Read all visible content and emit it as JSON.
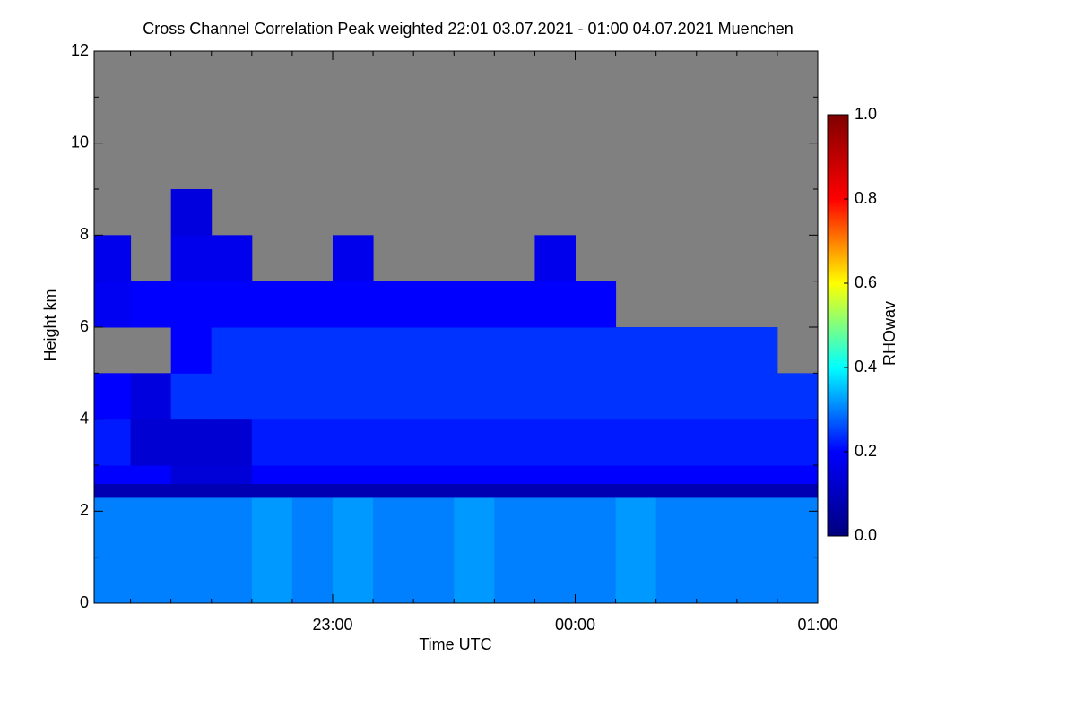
{
  "chart_data": {
    "type": "heatmap",
    "title": "Cross Channel Correlation Peak weighted   22:01 03.07.2021 - 01:00 04.07.2021 Muenchen",
    "xlabel": "Time UTC",
    "ylabel": "Height km",
    "colorbar_label": "RHOwav",
    "xlim": [
      1,
      180
    ],
    "xticks": [
      {
        "value": 60,
        "label": "23:00"
      },
      {
        "value": 120,
        "label": "00:00"
      },
      {
        "value": 180,
        "label": "01:00"
      }
    ],
    "xminorticks": [
      10,
      20,
      30,
      40,
      50,
      70,
      80,
      90,
      100,
      110,
      130,
      140,
      150,
      160,
      170
    ],
    "ylim": [
      0,
      12
    ],
    "yticks": [
      0,
      2,
      4,
      6,
      8,
      10,
      12
    ],
    "yminorticks": [
      1,
      3,
      5,
      7,
      9,
      11
    ],
    "clim": [
      0,
      1
    ],
    "cticks": [
      {
        "value": 0,
        "label": "0.0"
      },
      0.2,
      0.4,
      0.6,
      0.8,
      {
        "value": 1,
        "label": "1.0"
      }
    ],
    "colormap": [
      "#00007f",
      "#0000ff",
      "#00ffff",
      "#ffff00",
      "#ff0000",
      "#7f0000"
    ],
    "missing_color": "#808080",
    "xbins": [
      0,
      10,
      20,
      30,
      40,
      50,
      60,
      70,
      80,
      90,
      100,
      110,
      120,
      130,
      140,
      150,
      160,
      170,
      180
    ],
    "ybins": [
      0,
      2.3,
      2.6,
      3,
      4,
      5,
      6,
      7,
      8,
      9,
      10,
      11,
      12
    ],
    "z": [
      [
        0.3,
        0.3,
        0.3,
        0.3,
        0.32,
        0.3,
        0.32,
        0.3,
        0.3,
        0.32,
        0.3,
        0.3,
        0.3,
        0.32,
        0.3,
        0.3,
        0.3,
        0.3
      ],
      [
        0.08,
        0.08,
        0.08,
        0.08,
        0.08,
        0.08,
        0.08,
        0.08,
        0.08,
        0.08,
        0.08,
        0.08,
        0.08,
        0.08,
        0.08,
        0.08,
        0.08,
        0.08
      ],
      [
        0.2,
        0.2,
        0.14,
        0.14,
        0.2,
        0.2,
        0.2,
        0.2,
        0.2,
        0.2,
        0.2,
        0.2,
        0.2,
        0.2,
        0.2,
        0.2,
        0.2,
        0.2
      ],
      [
        0.22,
        0.13,
        0.13,
        0.13,
        0.22,
        0.22,
        0.22,
        0.22,
        0.22,
        0.22,
        0.22,
        0.22,
        0.22,
        0.22,
        0.22,
        0.22,
        0.22,
        0.22
      ],
      [
        0.2,
        0.15,
        0.24,
        0.24,
        0.24,
        0.24,
        0.24,
        0.24,
        0.24,
        0.24,
        0.24,
        0.24,
        0.24,
        0.24,
        0.24,
        0.24,
        0.24,
        0.24
      ],
      [
        null,
        null,
        0.2,
        0.24,
        0.24,
        0.24,
        0.24,
        0.24,
        0.24,
        0.24,
        0.24,
        0.24,
        0.24,
        0.24,
        0.24,
        0.24,
        0.24,
        null
      ],
      [
        0.18,
        0.2,
        0.2,
        0.2,
        0.2,
        0.2,
        0.2,
        0.2,
        0.2,
        0.2,
        0.2,
        0.2,
        0.2,
        null,
        null,
        null,
        null,
        null
      ],
      [
        0.17,
        null,
        0.17,
        0.17,
        null,
        null,
        0.17,
        null,
        null,
        null,
        null,
        0.17,
        null,
        null,
        null,
        null,
        null,
        null
      ],
      [
        null,
        null,
        0.15,
        null,
        null,
        null,
        null,
        null,
        null,
        null,
        null,
        null,
        null,
        null,
        null,
        null,
        null,
        null
      ],
      [
        null,
        null,
        null,
        null,
        null,
        null,
        null,
        null,
        null,
        null,
        null,
        null,
        null,
        null,
        null,
        null,
        null,
        null
      ],
      [
        null,
        null,
        null,
        null,
        null,
        null,
        null,
        null,
        null,
        null,
        null,
        null,
        null,
        null,
        null,
        null,
        null,
        null
      ],
      [
        null,
        null,
        null,
        null,
        null,
        null,
        null,
        null,
        null,
        null,
        null,
        null,
        null,
        null,
        null,
        null,
        null,
        null
      ]
    ]
  }
}
